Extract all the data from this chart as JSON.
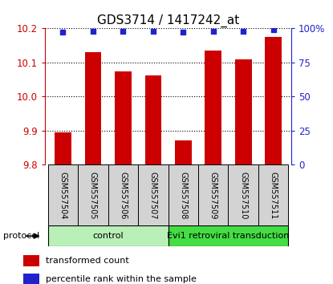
{
  "title": "GDS3714 / 1417242_at",
  "samples": [
    "GSM557504",
    "GSM557505",
    "GSM557506",
    "GSM557507",
    "GSM557508",
    "GSM557509",
    "GSM557510",
    "GSM557511"
  ],
  "transformed_counts": [
    9.895,
    10.13,
    10.075,
    10.062,
    9.872,
    10.135,
    10.108,
    10.175
  ],
  "percentile_ranks": [
    97,
    98,
    98,
    98,
    97,
    98,
    98,
    99
  ],
  "ylim_left": [
    9.8,
    10.2
  ],
  "yticks_left": [
    9.8,
    9.9,
    10.0,
    10.1,
    10.2
  ],
  "ylim_right": [
    0,
    100
  ],
  "yticks_right": [
    0,
    25,
    50,
    75,
    100
  ],
  "bar_color": "#cc0000",
  "dot_color": "#2222cc",
  "bar_width": 0.55,
  "control_color": "#b8f0b8",
  "evi_color": "#44dd44",
  "legend_items": [
    {
      "color": "#cc0000",
      "label": "transformed count"
    },
    {
      "color": "#2222cc",
      "label": "percentile rank within the sample"
    }
  ],
  "bg_color": "#ffffff",
  "left_axis_color": "#cc0000",
  "right_axis_color": "#2222cc",
  "title_fontsize": 11,
  "tick_fontsize": 8.5,
  "sample_fontsize": 7,
  "legend_fontsize": 8,
  "proto_fontsize": 8
}
